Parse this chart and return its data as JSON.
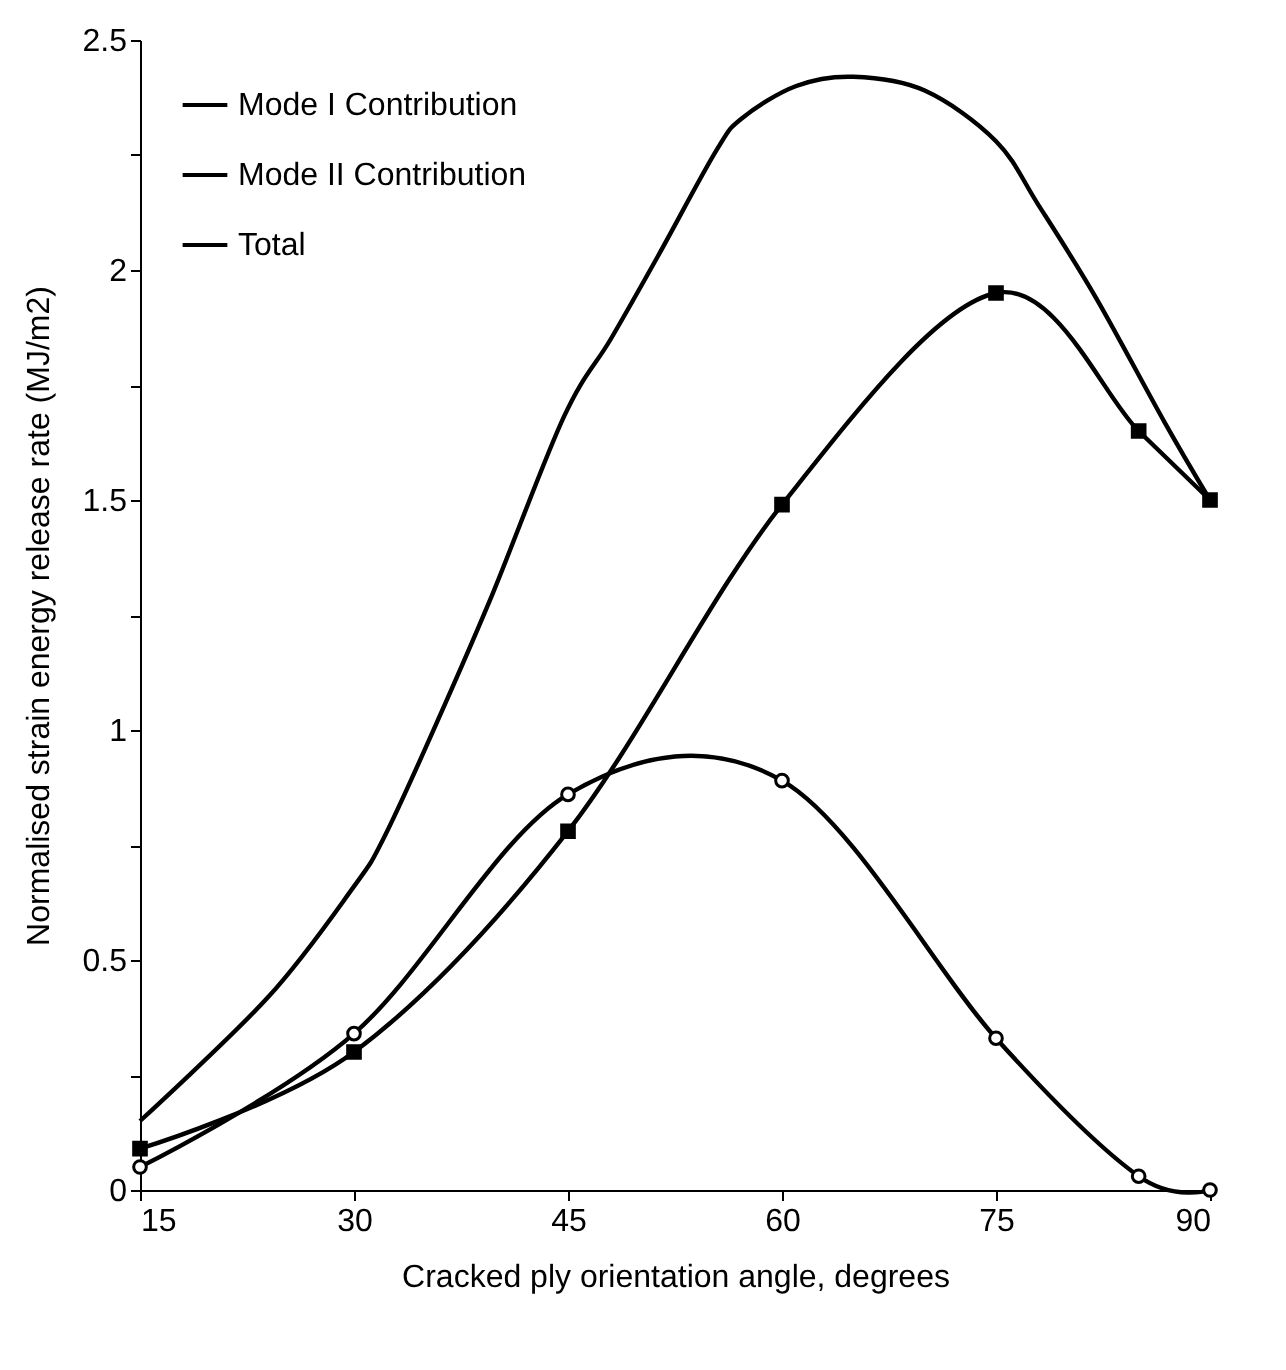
{
  "chart_data": {
    "type": "line",
    "xlabel": "Cracked ply orientation angle, degrees",
    "ylabel": "Normalised strain energy release rate (MJ/m2)",
    "x": [
      15,
      30,
      45,
      60,
      75,
      85,
      90
    ],
    "series": [
      {
        "name": "Mode I Contribution",
        "color": "#000000",
        "marker": "square",
        "values": [
          0.09,
          0.3,
          0.78,
          1.49,
          1.95,
          1.65,
          1.5
        ]
      },
      {
        "name": "Mode II Contribution",
        "color": "#000000",
        "marker": "circle",
        "values": [
          0.05,
          0.34,
          0.86,
          0.89,
          0.33,
          0.03,
          0
        ]
      },
      {
        "name": "Total",
        "color": "#000000",
        "marker": "none",
        "x": [
          15,
          24,
          30,
          32,
          35,
          39.5,
          44.7,
          48,
          51.3,
          55.4,
          57.2,
          61,
          65,
          70,
          75,
          78,
          82,
          86.8,
          90
        ],
        "values": [
          0.15,
          0.42,
          0.66,
          0.76,
          0.96,
          1.28,
          1.68,
          1.85,
          2.03,
          2.26,
          2.33,
          2.4,
          2.42,
          2.39,
          2.28,
          2.14,
          1.94,
          1.67,
          1.5
        ]
      }
    ],
    "xlim": [
      15,
      90
    ],
    "xticks": [
      15,
      30,
      45,
      60,
      75,
      90
    ],
    "ylim": [
      0,
      2.5
    ],
    "yticks": [
      0,
      {
        "value": 0.25,
        "label": null
      },
      0.5,
      {
        "value": 0.75,
        "label": null
      },
      1,
      {
        "value": 1.25,
        "label": null
      },
      1.5,
      {
        "value": 1.75,
        "label": null
      },
      2,
      {
        "value": 2.25,
        "label": null
      },
      2.5
    ],
    "grid": false,
    "legend": "top left",
    "line_style": "solid"
  }
}
